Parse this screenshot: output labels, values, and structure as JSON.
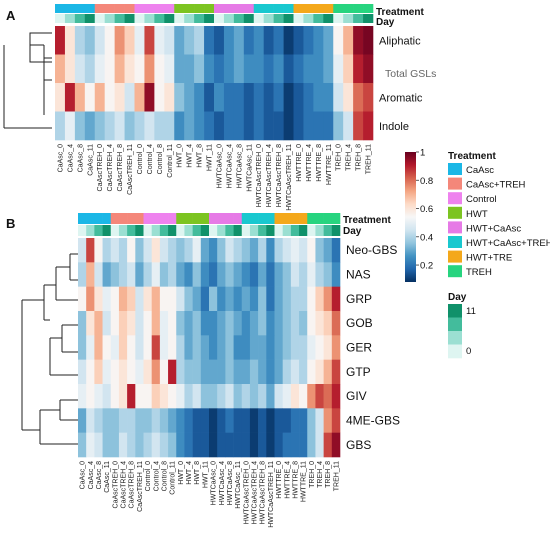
{
  "chart_data": [
    {
      "type": "heatmap",
      "panel": "A",
      "annotation_titles": {
        "treatment": "Treatment",
        "day": "Day"
      },
      "rows": [
        "Aliphatic",
        "",
        "Aromatic",
        "Indole"
      ],
      "side_note": "Total GSLs",
      "columns": [
        "CaAsc_0",
        "CaAsc_4",
        "CaAsc_8",
        "CaAsc_11",
        "CaAscTREH_0",
        "CaAscTREH_4",
        "CaAscTREH_8",
        "CaAscTREH_11",
        "Control_0",
        "Control_4",
        "Control_8",
        "Control_11",
        "HWT_0",
        "HWT_4",
        "HWT_8",
        "HWT_11",
        "HWTCaAsc_0",
        "HWTCaAsc_4",
        "HWTCaAsc_8",
        "HWTCaAsc_11",
        "HWTCaAscTREH_0",
        "HWTCaAscTREH_4",
        "HWTCaAscTREH_8",
        "HWTCaAscTREH_11",
        "HWTTRE_0",
        "HWTTRE_4",
        "HWTTRE_8",
        "HWTTRE_11",
        "TREH_0",
        "TREH_4",
        "TREH_8",
        "TREH_11"
      ],
      "values": [
        [
          0.9,
          0.6,
          0.4,
          0.35,
          0.45,
          0.55,
          0.75,
          0.65,
          0.5,
          0.85,
          0.5,
          0.45,
          0.3,
          0.35,
          0.4,
          0.2,
          0.15,
          0.25,
          0.3,
          0.2,
          0.25,
          0.15,
          0.2,
          0.1,
          0.15,
          0.2,
          0.25,
          0.3,
          0.55,
          0.7,
          0.95,
          0.98
        ],
        [
          0.7,
          0.6,
          0.45,
          0.4,
          0.5,
          0.55,
          0.7,
          0.6,
          0.55,
          0.75,
          0.55,
          0.5,
          0.3,
          0.3,
          0.35,
          0.25,
          0.2,
          0.25,
          0.3,
          0.25,
          0.25,
          0.2,
          0.25,
          0.15,
          0.2,
          0.25,
          0.25,
          0.3,
          0.5,
          0.65,
          0.9,
          0.95
        ],
        [
          0.6,
          0.9,
          0.7,
          0.55,
          0.7,
          0.55,
          0.6,
          0.45,
          0.7,
          0.95,
          0.55,
          0.6,
          0.35,
          0.3,
          0.25,
          0.15,
          0.25,
          0.2,
          0.2,
          0.15,
          0.2,
          0.15,
          0.2,
          0.1,
          0.15,
          0.2,
          0.25,
          0.25,
          0.45,
          0.6,
          0.8,
          0.85
        ],
        [
          0.4,
          0.5,
          0.35,
          0.3,
          0.35,
          0.4,
          0.45,
          0.35,
          0.4,
          0.45,
          0.4,
          0.4,
          0.25,
          0.3,
          0.25,
          0.2,
          0.15,
          0.2,
          0.2,
          0.15,
          0.2,
          0.15,
          0.15,
          0.1,
          0.15,
          0.2,
          0.2,
          0.2,
          0.35,
          0.45,
          0.85,
          0.9
        ]
      ]
    },
    {
      "type": "heatmap",
      "panel": "B",
      "annotation_titles": {
        "treatment": "Treatment",
        "day": "Day"
      },
      "rows": [
        "Neo-GBS",
        "NAS",
        "GRP",
        "GOB",
        "GER",
        "GTP",
        "GIV",
        "4ME-GBS",
        "GBS"
      ],
      "columns": [
        "CaAsc_0",
        "CaAsc_4",
        "CaAsc_8",
        "CaAsc_11",
        "CaAscTREH_0",
        "CaAscTREH_4",
        "CaAscTREH_8",
        "CaAscTREH_11",
        "Control_0",
        "Control_4",
        "Control_8",
        "Control_11",
        "HWT_0",
        "HWT_4",
        "HWT_8",
        "HWT_11",
        "HWTCaAsc_0",
        "HWTCaAsc_4",
        "HWTCaAsc_8",
        "HWTCaAsc_11",
        "HWTCaAscTREH_0",
        "HWTCaAscTREH_4",
        "HWTCaAscTREH_8",
        "HWTCaAscTREH_11",
        "HWTTRE_0",
        "HWTTRE_4",
        "HWTTRE_8",
        "HWTTRE_11",
        "TREH_0",
        "TREH_4",
        "TREH_8",
        "TREH_11"
      ],
      "values": [
        [
          0.45,
          0.85,
          0.55,
          0.4,
          0.45,
          0.4,
          0.55,
          0.35,
          0.45,
          0.6,
          0.45,
          0.4,
          0.35,
          0.4,
          0.5,
          0.3,
          0.25,
          0.35,
          0.45,
          0.4,
          0.35,
          0.3,
          0.4,
          0.25,
          0.4,
          0.45,
          0.5,
          0.45,
          0.55,
          0.35,
          0.3,
          0.2
        ],
        [
          0.4,
          0.7,
          0.45,
          0.3,
          0.35,
          0.4,
          0.45,
          0.3,
          0.4,
          0.5,
          0.35,
          0.4,
          0.3,
          0.25,
          0.35,
          0.25,
          0.2,
          0.3,
          0.35,
          0.3,
          0.25,
          0.2,
          0.3,
          0.2,
          0.3,
          0.35,
          0.45,
          0.4,
          0.5,
          0.4,
          0.35,
          0.25
        ],
        [
          0.55,
          0.75,
          0.6,
          0.5,
          0.55,
          0.7,
          0.65,
          0.45,
          0.6,
          0.7,
          0.55,
          0.55,
          0.45,
          0.35,
          0.3,
          0.2,
          0.35,
          0.25,
          0.3,
          0.25,
          0.3,
          0.25,
          0.35,
          0.2,
          0.3,
          0.35,
          0.4,
          0.4,
          0.55,
          0.65,
          0.75,
          0.9
        ],
        [
          0.35,
          0.6,
          0.7,
          0.45,
          0.55,
          0.65,
          0.6,
          0.45,
          0.55,
          0.7,
          0.5,
          0.55,
          0.35,
          0.3,
          0.35,
          0.25,
          0.25,
          0.3,
          0.35,
          0.3,
          0.25,
          0.3,
          0.35,
          0.25,
          0.3,
          0.35,
          0.4,
          0.35,
          0.55,
          0.6,
          0.65,
          0.8
        ],
        [
          0.35,
          0.5,
          0.7,
          0.55,
          0.5,
          0.65,
          0.55,
          0.45,
          0.55,
          0.85,
          0.5,
          0.55,
          0.4,
          0.3,
          0.35,
          0.3,
          0.25,
          0.3,
          0.35,
          0.25,
          0.25,
          0.3,
          0.3,
          0.25,
          0.3,
          0.35,
          0.4,
          0.4,
          0.5,
          0.55,
          0.6,
          0.75
        ],
        [
          0.45,
          0.55,
          0.65,
          0.5,
          0.55,
          0.6,
          0.55,
          0.5,
          0.6,
          0.75,
          0.55,
          0.9,
          0.4,
          0.35,
          0.35,
          0.3,
          0.3,
          0.3,
          0.35,
          0.3,
          0.3,
          0.35,
          0.3,
          0.25,
          0.3,
          0.4,
          0.45,
          0.4,
          0.55,
          0.6,
          0.7,
          0.85
        ],
        [
          0.5,
          0.55,
          0.5,
          0.45,
          0.55,
          0.6,
          0.9,
          0.55,
          0.55,
          0.65,
          0.6,
          0.55,
          0.5,
          0.4,
          0.45,
          0.35,
          0.35,
          0.4,
          0.45,
          0.35,
          0.4,
          0.35,
          0.4,
          0.3,
          0.45,
          0.5,
          0.6,
          0.55,
          0.75,
          0.85,
          0.8,
          0.9
        ],
        [
          0.3,
          0.45,
          0.4,
          0.35,
          0.35,
          0.4,
          0.4,
          0.35,
          0.35,
          0.4,
          0.35,
          0.3,
          0.25,
          0.2,
          0.15,
          0.15,
          0.1,
          0.15,
          0.2,
          0.15,
          0.15,
          0.1,
          0.15,
          0.1,
          0.15,
          0.15,
          0.2,
          0.2,
          0.35,
          0.45,
          0.75,
          0.85
        ],
        [
          0.35,
          0.5,
          0.45,
          0.35,
          0.35,
          0.45,
          0.4,
          0.35,
          0.4,
          0.45,
          0.4,
          0.35,
          0.25,
          0.2,
          0.15,
          0.15,
          0.1,
          0.15,
          0.15,
          0.15,
          0.15,
          0.1,
          0.15,
          0.1,
          0.15,
          0.2,
          0.2,
          0.2,
          0.35,
          0.45,
          0.85,
          0.95
        ]
      ]
    }
  ],
  "colorbar": {
    "ticks": [
      "0.2",
      "0.4",
      "0.6",
      "0.8",
      "1"
    ],
    "tick_values": [
      0.2,
      0.4,
      0.6,
      0.8,
      1.0
    ],
    "range": [
      0.08,
      1.0
    ],
    "colors": [
      "#053061",
      "#2166ac",
      "#4393c3",
      "#92c5de",
      "#d1e5f0",
      "#f7f7f7",
      "#fddbc7",
      "#f4a582",
      "#d6604d",
      "#b2182b",
      "#67001f"
    ]
  },
  "legend": {
    "treatment_title": "Treatment",
    "treatments": [
      {
        "label": "CaAsc",
        "color": "#1bb7e6"
      },
      {
        "label": "CaAsc+TREH",
        "color": "#f4877a"
      },
      {
        "label": "Control",
        "color": "#ee82ee"
      },
      {
        "label": "HWT",
        "color": "#7cc421"
      },
      {
        "label": "HWT+CaAsc",
        "color": "#e67ae6"
      },
      {
        "label": "HWT+CaAsc+TREH",
        "color": "#19c8cf"
      },
      {
        "label": "HWT+TRE",
        "color": "#f4a81b"
      },
      {
        "label": "TREH",
        "color": "#27d47f"
      }
    ],
    "day_title": "Day",
    "day_ticks": [
      "11",
      "0"
    ],
    "day_levels": [
      0,
      4,
      8,
      11
    ],
    "day_colors": [
      "#def5f1",
      "#9bdfd2",
      "#43bc9c",
      "#10916a"
    ]
  }
}
